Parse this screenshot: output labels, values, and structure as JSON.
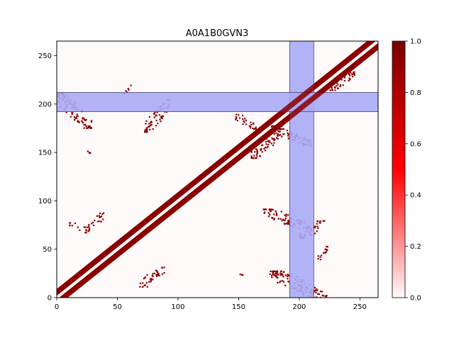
{
  "chart_data": {
    "type": "heatmap",
    "title": "A0A1B0GVN3",
    "n_residues": 265,
    "xlim": [
      0,
      265
    ],
    "ylim": [
      0,
      265
    ],
    "xticks": [
      0,
      50,
      100,
      150,
      200,
      250
    ],
    "yticks": [
      0,
      50,
      100,
      150,
      200,
      250
    ],
    "colorbar": {
      "range": [
        0.0,
        1.0
      ],
      "ticks": [
        "0.0",
        "0.2",
        "0.4",
        "0.6",
        "0.8",
        "1.0"
      ],
      "colors": [
        "#fffafa",
        "#ff0000",
        "#7a0000"
      ]
    },
    "highlight": {
      "start": 192,
      "end": 212,
      "color": "#aaaaf5"
    },
    "contact_color": "#8b0000",
    "diagonal_band": {
      "inner_gap": 2,
      "outer_width": 9
    },
    "contact_regions": [
      {
        "x": [
          0,
          28
        ],
        "y": [
          176,
          212
        ]
      },
      {
        "x": [
          72,
          92
        ],
        "y": [
          172,
          205
        ]
      },
      {
        "x": [
          145,
          165
        ],
        "y": [
          175,
          190
        ]
      },
      {
        "x": [
          160,
          185
        ],
        "y": [
          145,
          175
        ]
      },
      {
        "x": [
          176,
          210
        ],
        "y": [
          158,
          178
        ]
      },
      {
        "x": [
          22,
          38
        ],
        "y": [
          68,
          88
        ]
      },
      {
        "x": [
          10,
          20
        ],
        "y": [
          70,
          78
        ]
      },
      {
        "x": [
          68,
          88
        ],
        "y": [
          12,
          32
        ]
      },
      {
        "x": [
          170,
          210
        ],
        "y": [
          70,
          92
        ]
      },
      {
        "x": [
          200,
          220
        ],
        "y": [
          62,
          80
        ]
      },
      {
        "x": [
          175,
          222
        ],
        "y": [
          0,
          28
        ]
      },
      {
        "x": [
          55,
          62
        ],
        "y": [
          212,
          220
        ]
      },
      {
        "x": [
          25,
          27
        ],
        "y": [
          150,
          153
        ]
      },
      {
        "x": [
          215,
          225
        ],
        "y": [
          40,
          55
        ]
      },
      {
        "x": [
          150,
          155
        ],
        "y": [
          22,
          25
        ]
      },
      {
        "x": [
          225,
          245
        ],
        "y": [
          215,
          235
        ]
      }
    ]
  }
}
